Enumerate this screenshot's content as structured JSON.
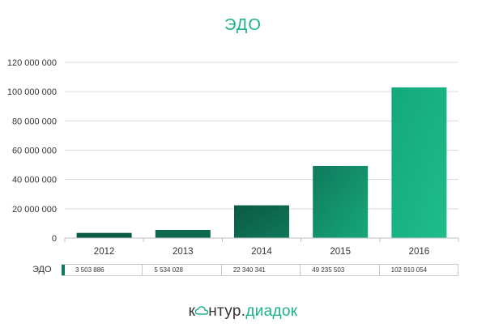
{
  "chart_data": {
    "type": "bar",
    "title": "ЭДО",
    "categories": [
      "2012",
      "2013",
      "2014",
      "2015",
      "2016"
    ],
    "series": [
      {
        "name": "ЭДО",
        "values": [
          3503886,
          5534028,
          22340341,
          49235503,
          102910054
        ],
        "value_labels": [
          "3 503 886",
          "5 534 028",
          "22 340 341",
          "49 235 503",
          "102 910 054"
        ]
      }
    ],
    "ylim": [
      0,
      120000000
    ],
    "y_ticks": [
      0,
      20000000,
      40000000,
      60000000,
      80000000,
      100000000,
      120000000
    ],
    "y_tick_labels": [
      "0",
      "20 000 000",
      "40 000 000",
      "60 000 000",
      "80 000 000",
      "100 000 000",
      "120 000 000"
    ],
    "grid": true,
    "legend": "data-table-below",
    "colors": {
      "bar_dark": "#0b5a44",
      "bar_light": "#19b685",
      "title": "#1bb38a",
      "grid": "#d9d9d9"
    }
  },
  "logo": {
    "part1": "к",
    "part2": "нтур.",
    "part3": "диадок"
  }
}
